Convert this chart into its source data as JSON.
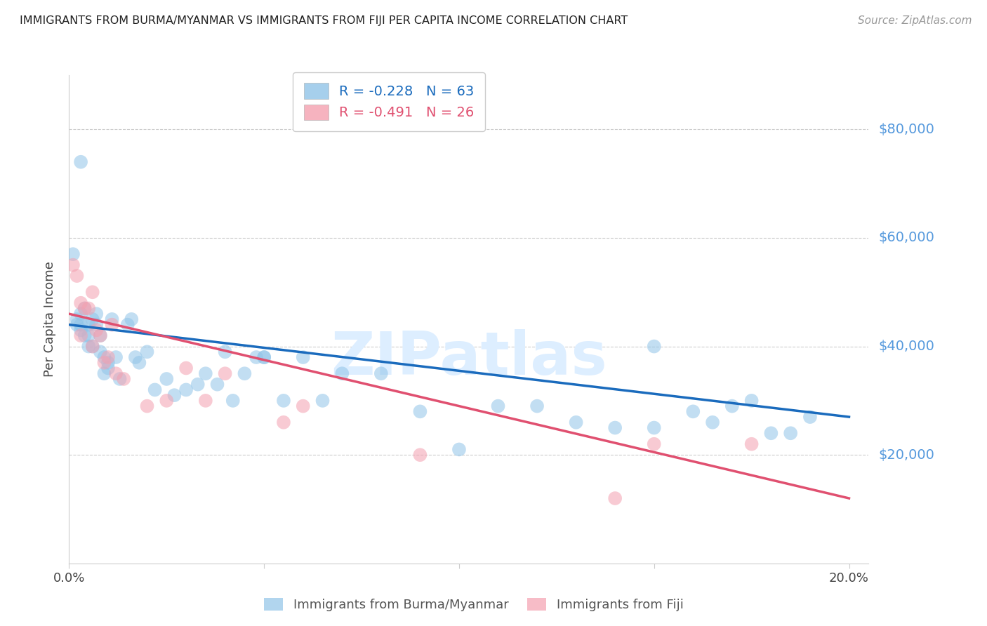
{
  "title": "IMMIGRANTS FROM BURMA/MYANMAR VS IMMIGRANTS FROM FIJI PER CAPITA INCOME CORRELATION CHART",
  "source": "Source: ZipAtlas.com",
  "ylabel": "Per Capita Income",
  "xlim": [
    0.0,
    0.205
  ],
  "ylim": [
    0,
    90000
  ],
  "yticks": [
    20000,
    40000,
    60000,
    80000
  ],
  "ytick_labels": [
    "$20,000",
    "$40,000",
    "$60,000",
    "$80,000"
  ],
  "xticks": [
    0.0,
    0.05,
    0.1,
    0.15,
    0.2
  ],
  "blue_label": "Immigrants from Burma/Myanmar",
  "pink_label": "Immigrants from Fiji",
  "blue_R": -0.228,
  "blue_N": 63,
  "pink_R": -0.491,
  "pink_N": 26,
  "blue_color": "#90c4e8",
  "pink_color": "#f4a0b0",
  "blue_line_color": "#1a6bbd",
  "pink_line_color": "#e05070",
  "ytick_color": "#5599dd",
  "title_color": "#222222",
  "watermark_color": "#ddeeff",
  "background_color": "#ffffff",
  "blue_x": [
    0.001,
    0.002,
    0.002,
    0.003,
    0.003,
    0.003,
    0.004,
    0.004,
    0.005,
    0.005,
    0.005,
    0.006,
    0.006,
    0.007,
    0.007,
    0.008,
    0.008,
    0.009,
    0.009,
    0.01,
    0.01,
    0.011,
    0.012,
    0.013,
    0.015,
    0.016,
    0.017,
    0.018,
    0.02,
    0.022,
    0.025,
    0.027,
    0.03,
    0.033,
    0.035,
    0.038,
    0.04,
    0.042,
    0.045,
    0.048,
    0.05,
    0.055,
    0.06,
    0.065,
    0.07,
    0.08,
    0.09,
    0.1,
    0.11,
    0.12,
    0.13,
    0.14,
    0.15,
    0.16,
    0.17,
    0.175,
    0.18,
    0.185,
    0.19,
    0.15,
    0.165,
    0.003,
    0.05
  ],
  "blue_y": [
    57000,
    45000,
    44000,
    46000,
    44000,
    43000,
    47000,
    42000,
    44000,
    42000,
    40000,
    45000,
    40000,
    44000,
    46000,
    42000,
    39000,
    38000,
    35000,
    36000,
    37000,
    45000,
    38000,
    34000,
    44000,
    45000,
    38000,
    37000,
    39000,
    32000,
    34000,
    31000,
    32000,
    33000,
    35000,
    33000,
    39000,
    30000,
    35000,
    38000,
    38000,
    30000,
    38000,
    30000,
    35000,
    35000,
    28000,
    21000,
    29000,
    29000,
    26000,
    25000,
    25000,
    28000,
    29000,
    30000,
    24000,
    24000,
    27000,
    40000,
    26000,
    74000,
    38000
  ],
  "pink_x": [
    0.001,
    0.002,
    0.003,
    0.004,
    0.005,
    0.006,
    0.007,
    0.008,
    0.009,
    0.01,
    0.011,
    0.012,
    0.014,
    0.02,
    0.025,
    0.03,
    0.035,
    0.04,
    0.055,
    0.06,
    0.09,
    0.14,
    0.15,
    0.175,
    0.003,
    0.006
  ],
  "pink_y": [
    55000,
    53000,
    48000,
    47000,
    47000,
    50000,
    43000,
    42000,
    37000,
    38000,
    44000,
    35000,
    34000,
    29000,
    30000,
    36000,
    30000,
    35000,
    26000,
    29000,
    20000,
    12000,
    22000,
    22000,
    42000,
    40000
  ]
}
